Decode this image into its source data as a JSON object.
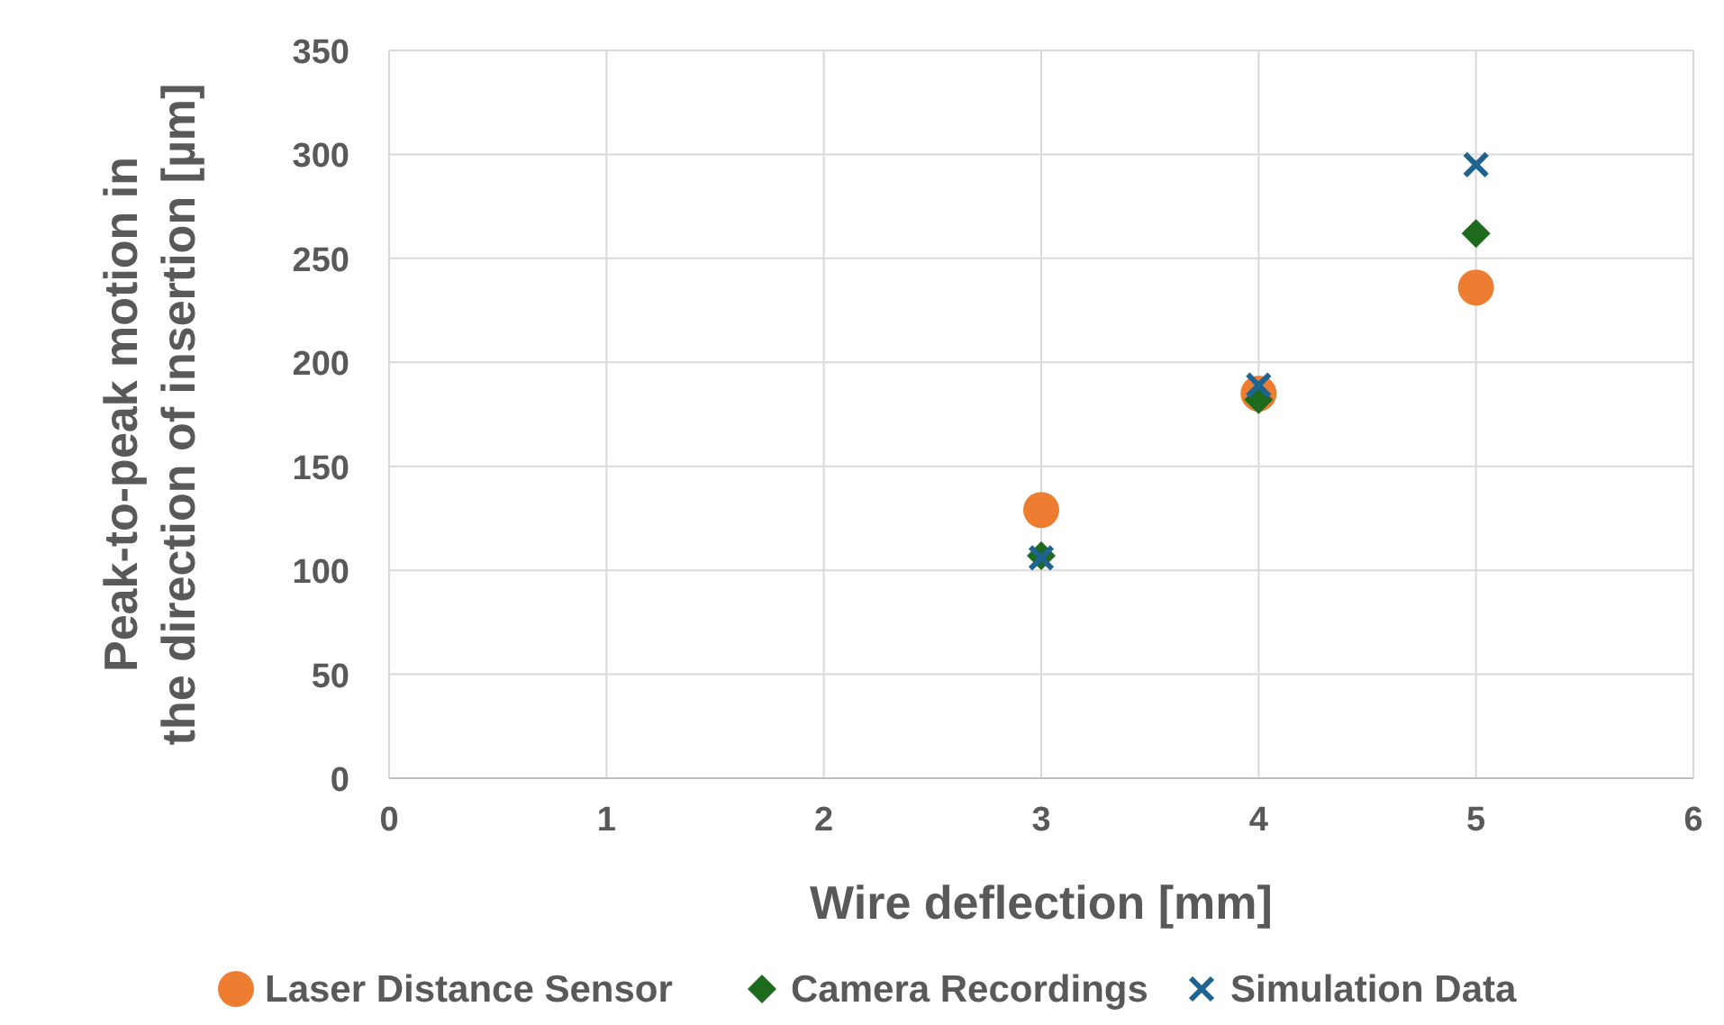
{
  "chart_data": {
    "type": "scatter",
    "xlabel": "Wire deflection [mm]",
    "ylabel": "Peak-to-peak motion in the direction of insertion [µm]",
    "xlim": [
      0,
      6
    ],
    "xticks": [
      0,
      1,
      2,
      3,
      4,
      5,
      6
    ],
    "ylim": [
      0,
      350
    ],
    "yticks": [
      0,
      50,
      100,
      150,
      200,
      250,
      300,
      350
    ],
    "grid": true,
    "legend": "bottom",
    "series": [
      {
        "name": "Laser Distance Sensor",
        "color": "#ed7d31",
        "marker": "circle",
        "x": [
          3,
          4,
          5
        ],
        "values": [
          129,
          185,
          236
        ]
      },
      {
        "name": "Camera Recordings",
        "color": "#1e6b1e",
        "marker": "diamond",
        "x": [
          3,
          4,
          5
        ],
        "values": [
          107,
          182,
          262
        ]
      },
      {
        "name": "Simulation Data",
        "color": "#1f6391",
        "marker": "cross",
        "x": [
          3,
          4,
          5
        ],
        "values": [
          106,
          189,
          295
        ]
      }
    ]
  }
}
